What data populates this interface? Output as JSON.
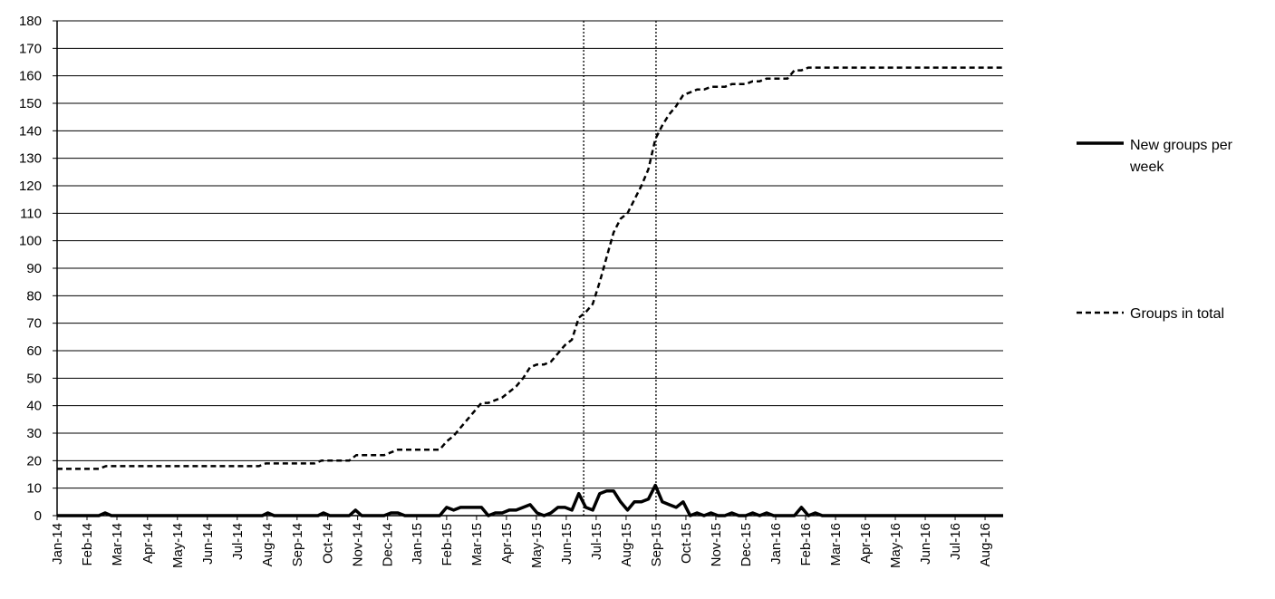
{
  "chart_data": {
    "type": "line",
    "title": "",
    "xlabel": "",
    "ylabel": "",
    "ylim": [
      0,
      180
    ],
    "yticks": [
      0,
      10,
      20,
      30,
      40,
      50,
      60,
      70,
      80,
      90,
      100,
      110,
      120,
      130,
      140,
      150,
      160,
      170,
      180
    ],
    "grid": true,
    "legend_position": "right",
    "x_tick_labels": [
      "Jan-14",
      "Feb-14",
      "Mar-14",
      "Apr-14",
      "May-14",
      "Jun-14",
      "Jul-14",
      "Aug-14",
      "Sep-14",
      "Oct-14",
      "Nov-14",
      "Dec-14",
      "Jan-15",
      "Feb-15",
      "Mar-15",
      "Apr-15",
      "May-15",
      "Jun-15",
      "Jul-15",
      "Aug-15",
      "Sep-15",
      "Oct-15",
      "Nov-15",
      "Dec-15",
      "Jan-16",
      "Feb-16",
      "Mar-16",
      "Apr-16",
      "May-16",
      "Jun-16",
      "Jul-16",
      "Aug-16"
    ],
    "x_tick_weeks": [
      0,
      4.3,
      8.6,
      13,
      17.3,
      21.6,
      25.9,
      30.2,
      34.5,
      38.9,
      43.2,
      47.5,
      51.7,
      56,
      60.3,
      64.6,
      68.9,
      73.2,
      77.5,
      81.8,
      86.1,
      90.4,
      94.7,
      99,
      103.3,
      107.6,
      111.9,
      116.2,
      120.5,
      124.8,
      129.1,
      133.4
    ],
    "x_range_weeks": [
      0,
      136
    ],
    "reference_lines_weeks": [
      75.7,
      86.1
    ],
    "series": [
      {
        "name": "New groups per\nweek",
        "style": "solid",
        "points": [
          [
            0,
            0
          ],
          [
            6,
            0
          ],
          [
            6.9,
            1
          ],
          [
            7.8,
            0
          ],
          [
            29.5,
            0
          ],
          [
            30.3,
            1
          ],
          [
            31.2,
            0
          ],
          [
            37.5,
            0
          ],
          [
            38.3,
            1
          ],
          [
            39.2,
            0
          ],
          [
            42,
            0
          ],
          [
            42.9,
            2
          ],
          [
            43.8,
            0
          ],
          [
            47,
            0
          ],
          [
            48,
            1
          ],
          [
            49,
            1
          ],
          [
            50,
            0
          ],
          [
            55,
            0
          ],
          [
            56,
            3
          ],
          [
            57,
            2
          ],
          [
            58,
            3
          ],
          [
            59,
            3
          ],
          [
            60,
            3
          ],
          [
            61,
            3
          ],
          [
            62,
            0
          ],
          [
            63,
            1
          ],
          [
            64,
            1
          ],
          [
            65,
            2
          ],
          [
            66,
            2
          ],
          [
            67,
            3
          ],
          [
            68,
            4
          ],
          [
            69,
            1
          ],
          [
            70,
            0
          ],
          [
            71,
            1
          ],
          [
            72,
            3
          ],
          [
            73,
            3
          ],
          [
            74,
            2
          ],
          [
            75,
            8
          ],
          [
            76,
            3
          ],
          [
            77,
            2
          ],
          [
            78,
            8
          ],
          [
            79,
            9
          ],
          [
            80,
            9
          ],
          [
            81,
            5
          ],
          [
            82,
            2
          ],
          [
            83,
            5
          ],
          [
            84,
            5
          ],
          [
            85,
            6
          ],
          [
            86,
            11
          ],
          [
            87,
            5
          ],
          [
            88,
            4
          ],
          [
            89,
            3
          ],
          [
            90,
            5
          ],
          [
            91,
            0
          ],
          [
            92,
            1
          ],
          [
            93,
            0
          ],
          [
            94,
            1
          ],
          [
            95,
            0
          ],
          [
            96,
            0
          ],
          [
            97,
            1
          ],
          [
            98,
            0
          ],
          [
            99,
            0
          ],
          [
            100,
            1
          ],
          [
            101,
            0
          ],
          [
            102,
            1
          ],
          [
            103,
            0
          ],
          [
            106,
            0
          ],
          [
            107,
            3
          ],
          [
            108,
            0
          ],
          [
            109,
            1
          ],
          [
            110,
            0
          ],
          [
            136,
            0
          ]
        ]
      },
      {
        "name": "Groups in total",
        "style": "dashed",
        "points": [
          [
            0,
            17
          ],
          [
            6,
            17
          ],
          [
            7,
            18
          ],
          [
            29,
            18
          ],
          [
            30,
            19
          ],
          [
            37,
            19
          ],
          [
            38,
            20
          ],
          [
            42,
            20
          ],
          [
            43,
            22
          ],
          [
            47,
            22
          ],
          [
            48,
            23
          ],
          [
            49,
            24
          ],
          [
            55,
            24
          ],
          [
            56,
            27
          ],
          [
            57,
            29
          ],
          [
            58,
            32
          ],
          [
            59,
            35
          ],
          [
            60,
            38
          ],
          [
            61,
            41
          ],
          [
            62,
            41
          ],
          [
            63,
            42
          ],
          [
            64,
            43
          ],
          [
            65,
            45
          ],
          [
            66,
            47
          ],
          [
            67,
            50
          ],
          [
            68,
            54
          ],
          [
            69,
            55
          ],
          [
            70,
            55
          ],
          [
            71,
            56
          ],
          [
            72,
            59
          ],
          [
            73,
            62
          ],
          [
            74,
            64
          ],
          [
            75,
            72
          ],
          [
            76,
            74
          ],
          [
            77,
            77
          ],
          [
            78,
            85
          ],
          [
            79,
            94
          ],
          [
            80,
            103
          ],
          [
            81,
            108
          ],
          [
            82,
            110
          ],
          [
            83,
            115
          ],
          [
            84,
            120
          ],
          [
            85,
            126
          ],
          [
            86,
            137
          ],
          [
            87,
            142
          ],
          [
            88,
            146
          ],
          [
            89,
            149
          ],
          [
            90,
            153
          ],
          [
            91,
            154
          ],
          [
            92,
            155
          ],
          [
            93,
            155
          ],
          [
            94,
            156
          ],
          [
            95,
            156
          ],
          [
            96,
            156
          ],
          [
            97,
            157
          ],
          [
            98,
            157
          ],
          [
            99,
            157
          ],
          [
            100,
            158
          ],
          [
            101,
            158
          ],
          [
            102,
            159
          ],
          [
            103,
            159
          ],
          [
            105,
            159
          ],
          [
            106,
            162
          ],
          [
            107,
            162
          ],
          [
            108,
            163
          ],
          [
            136,
            163
          ]
        ]
      }
    ]
  }
}
